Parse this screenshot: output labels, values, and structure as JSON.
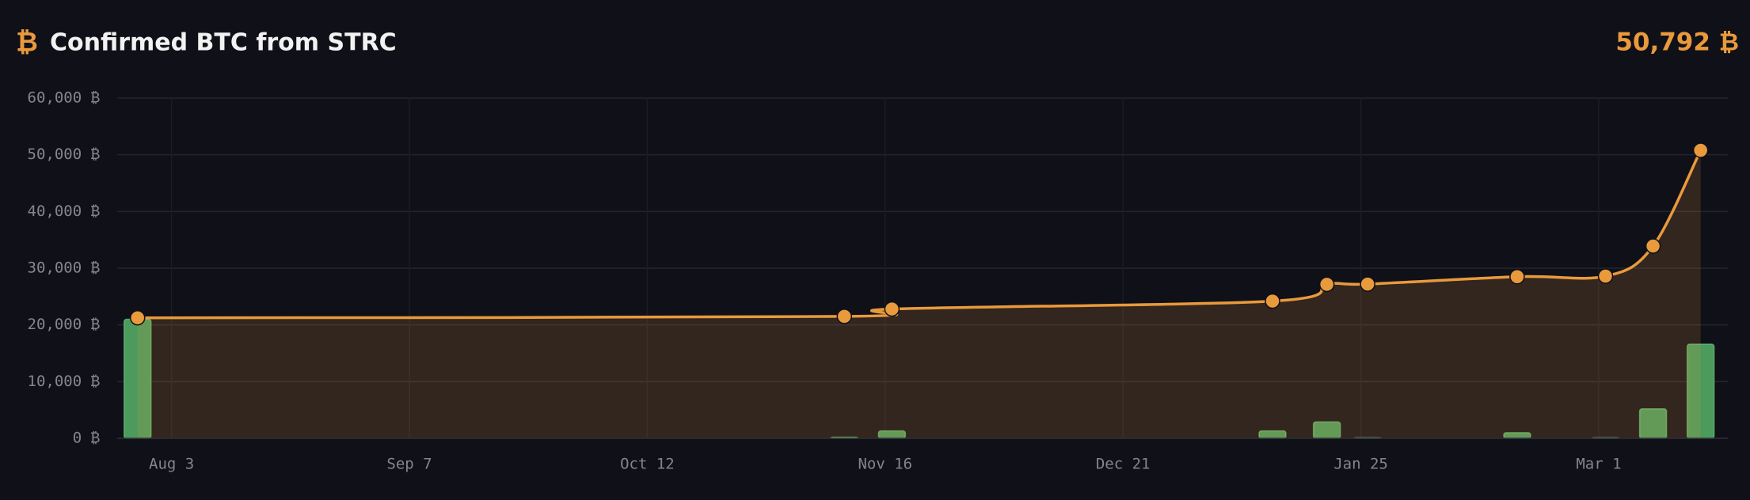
{
  "chart_data": {
    "type": "combo",
    "title": "Confirmed BTC from STRC",
    "headline": "50,792 ₿",
    "x": [
      -5,
      99,
      106,
      162,
      170,
      176,
      198,
      211,
      218,
      225
    ],
    "xlim": [
      -8,
      229
    ],
    "xticks": [
      {
        "value": 0,
        "label": "Aug 3"
      },
      {
        "value": 35,
        "label": "Sep 7"
      },
      {
        "value": 70,
        "label": "Oct 12"
      },
      {
        "value": 105,
        "label": "Nov 16"
      },
      {
        "value": 140,
        "label": "Dec 21"
      },
      {
        "value": 175,
        "label": "Jan 25"
      },
      {
        "value": 210,
        "label": "Mar 1"
      }
    ],
    "ylim": [
      0,
      60000
    ],
    "yticks": [
      {
        "value": 0,
        "label": "0 ₿"
      },
      {
        "value": 10000,
        "label": "10,000 ₿"
      },
      {
        "value": 20000,
        "label": "20,000 ₿"
      },
      {
        "value": 30000,
        "label": "30,000 ₿"
      },
      {
        "value": 40000,
        "label": "40,000 ₿"
      },
      {
        "value": 50000,
        "label": "50,000 ₿"
      },
      {
        "value": 60000,
        "label": "60,000 ₿"
      }
    ],
    "grid": true,
    "series": [
      {
        "type": "bar",
        "color": "#4c9a5c",
        "values": [
          21000,
          200,
          1300,
          1300,
          2900,
          100,
          1000,
          100,
          5200,
          16600
        ]
      },
      {
        "type": "line",
        "color": "#e99a3c",
        "values": [
          21250,
          21500,
          22800,
          24200,
          27150,
          27200,
          28500,
          28600,
          33900,
          50792
        ]
      }
    ]
  }
}
